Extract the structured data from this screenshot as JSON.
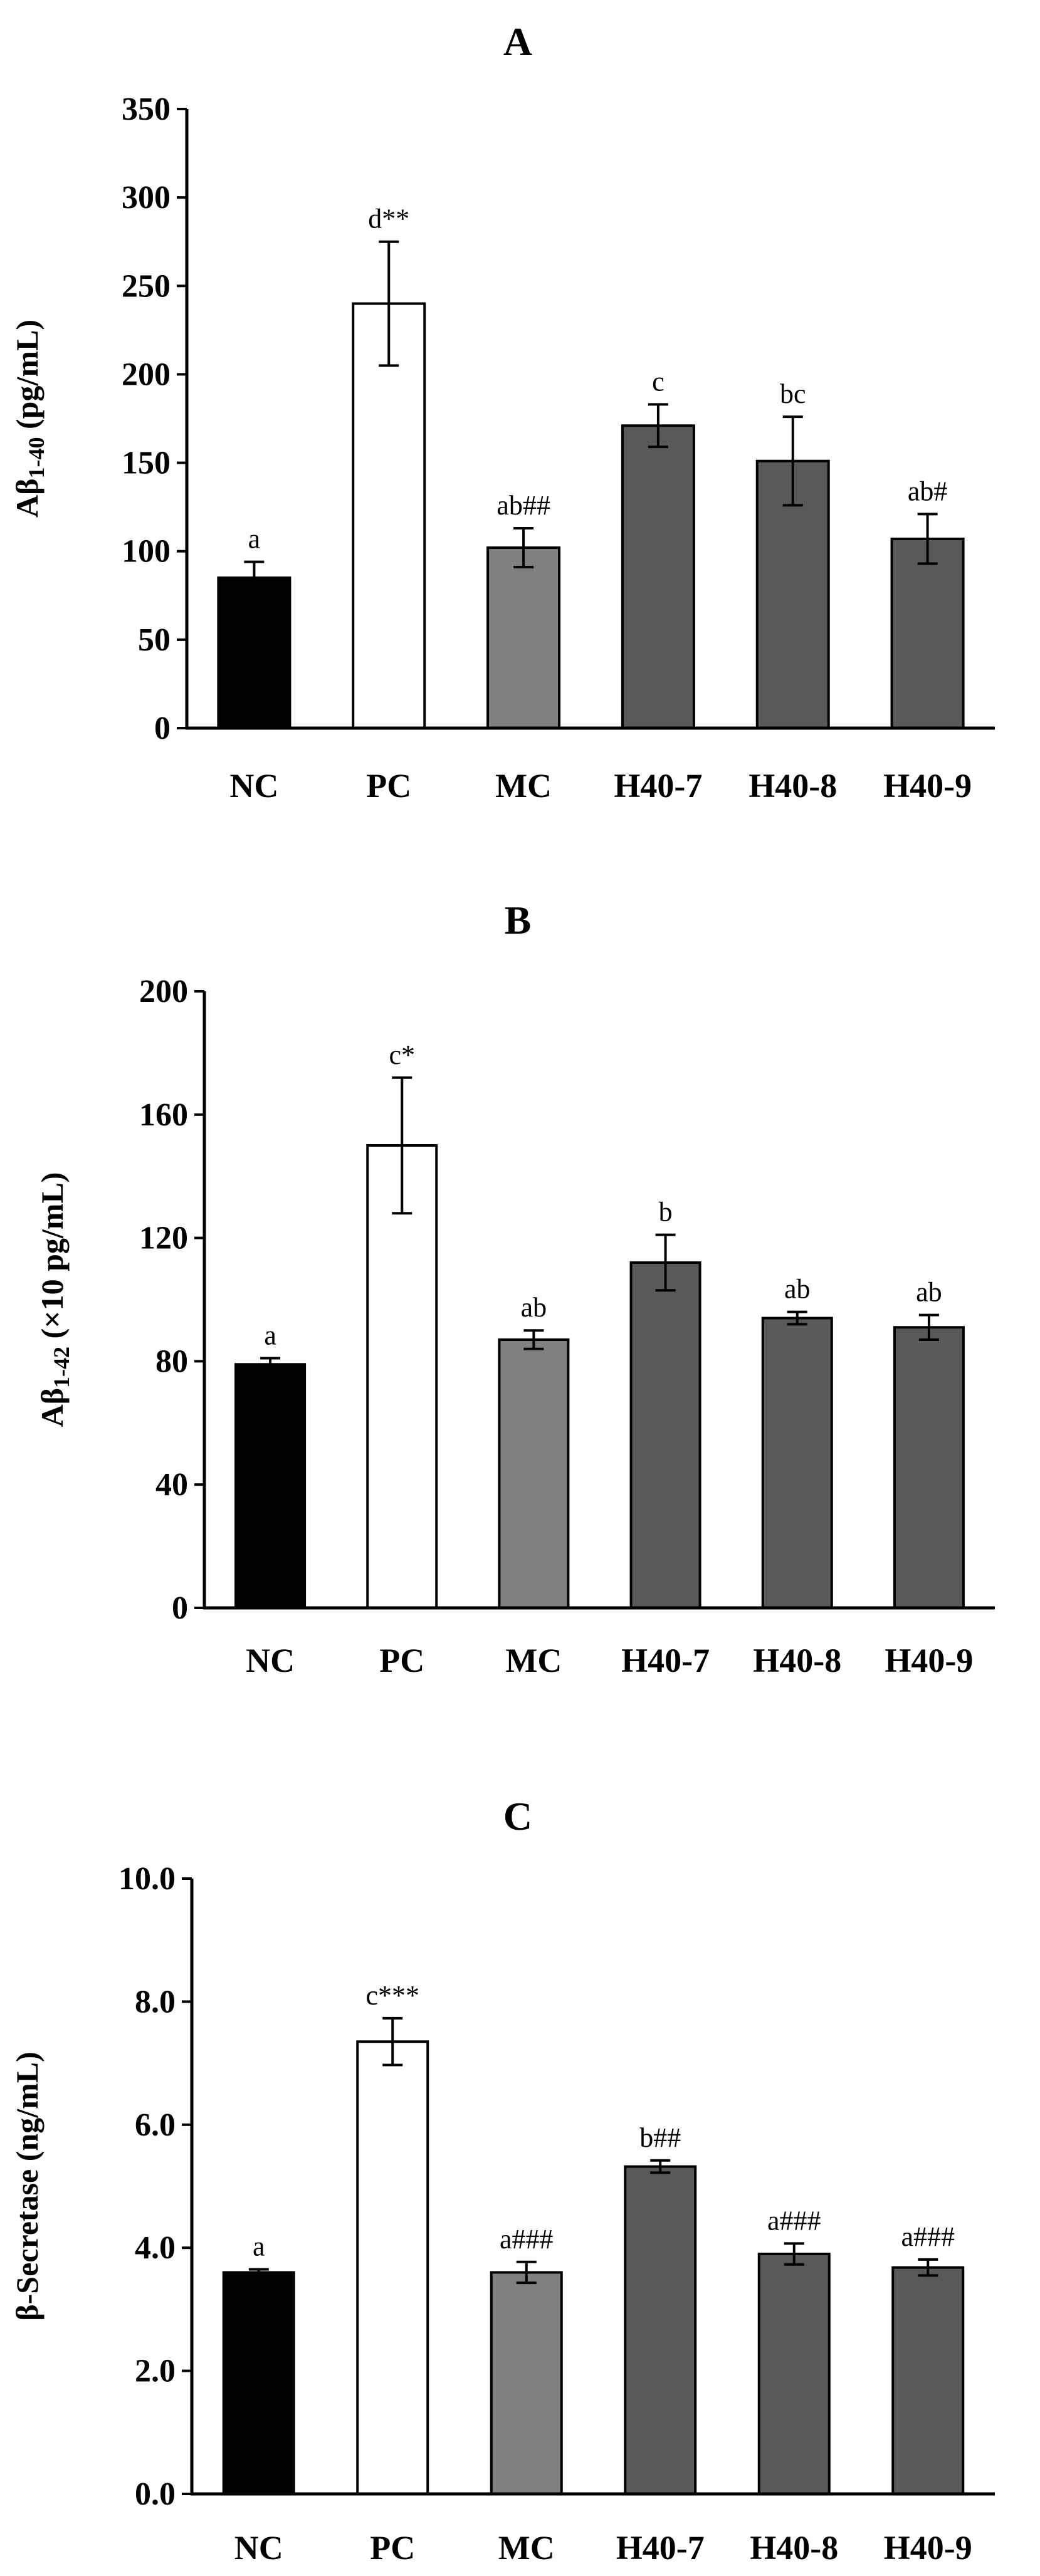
{
  "chart_data": [
    {
      "panel": "A",
      "type": "bar",
      "categories": [
        "NC",
        "PC",
        "MC",
        "H40-7",
        "H40-8",
        "H40-9"
      ],
      "values": [
        85,
        240,
        102,
        171,
        151,
        107
      ],
      "errors": [
        9,
        35,
        11,
        12,
        25,
        14
      ],
      "labels": [
        "a",
        "d**",
        "ab##",
        "c",
        "bc",
        "ab#"
      ],
      "colors": [
        "#000000",
        "#ffffff",
        "#808080",
        "#595959",
        "#595959",
        "#595959"
      ],
      "ylabel": "Aβ1-40 (pg/mL)",
      "ylabel_main": "Aβ",
      "ylabel_sub": "1-40",
      "ylabel_rest": " (pg/mL)",
      "ylim": [
        0,
        350
      ],
      "yticks": [
        0,
        50,
        100,
        150,
        200,
        250,
        300,
        350
      ],
      "ytick_labels": [
        "0",
        "50",
        "100",
        "150",
        "200",
        "250",
        "300",
        "350"
      ]
    },
    {
      "panel": "B",
      "type": "bar",
      "categories": [
        "NC",
        "PC",
        "MC",
        "H40-7",
        "H40-8",
        "H40-9"
      ],
      "values": [
        79,
        150,
        87,
        112,
        94,
        91
      ],
      "errors": [
        2,
        22,
        3,
        9,
        2,
        4
      ],
      "labels": [
        "a",
        "c*",
        "ab",
        "b",
        "ab",
        "ab"
      ],
      "colors": [
        "#000000",
        "#ffffff",
        "#808080",
        "#595959",
        "#595959",
        "#595959"
      ],
      "ylabel": "Aβ1-42 (×10 pg/mL)",
      "ylabel_main": "Aβ",
      "ylabel_sub": "1-42",
      "ylabel_rest": " (×10 pg/mL)",
      "ylim": [
        0,
        200
      ],
      "yticks": [
        0,
        40,
        80,
        120,
        160,
        200
      ],
      "ytick_labels": [
        "0",
        "40",
        "80",
        "120",
        "160",
        "200"
      ]
    },
    {
      "panel": "C",
      "type": "bar",
      "categories": [
        "NC",
        "PC",
        "MC",
        "H40-7",
        "H40-8",
        "H40-9"
      ],
      "values": [
        3.6,
        7.35,
        3.6,
        5.32,
        3.9,
        3.68
      ],
      "errors": [
        0.05,
        0.38,
        0.17,
        0.1,
        0.17,
        0.13
      ],
      "labels": [
        "a",
        "c***",
        "a###",
        "b##",
        "a###",
        "a###"
      ],
      "colors": [
        "#000000",
        "#ffffff",
        "#808080",
        "#595959",
        "#595959",
        "#595959"
      ],
      "ylabel": "β-Secretase (ng/mL)",
      "ylabel_main": "β-Secretase (ng/mL)",
      "ylabel_sub": "",
      "ylabel_rest": "",
      "ylim": [
        0,
        10
      ],
      "yticks": [
        0,
        2,
        4,
        6,
        8,
        10
      ],
      "ytick_labels": [
        "0.0",
        "2.0",
        "4.0",
        "6.0",
        "8.0",
        "10.0"
      ]
    }
  ]
}
